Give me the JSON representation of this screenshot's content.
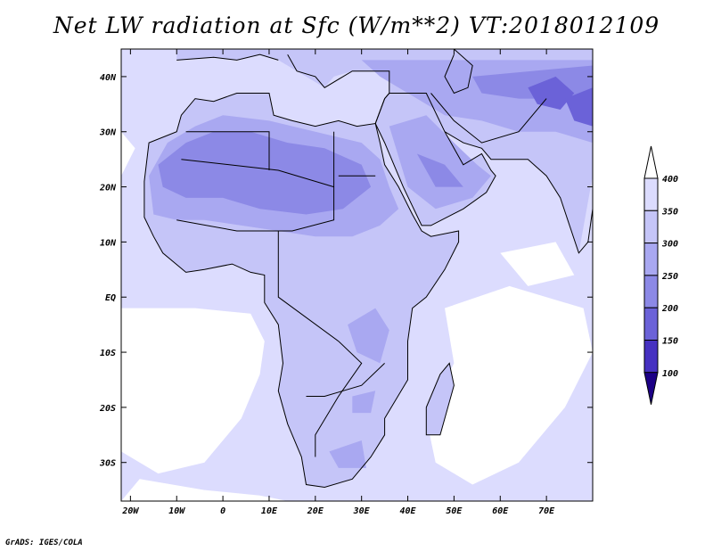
{
  "title": "Net LW radiation at Sfc (W/m**2) VT:2018012109",
  "credit": "GrADS: IGES/COLA",
  "map": {
    "lon_range": [
      -22,
      80
    ],
    "lat_range": [
      -37,
      45
    ],
    "lon_ticks": [
      {
        "value": -20,
        "label": "20W"
      },
      {
        "value": -10,
        "label": "10W"
      },
      {
        "value": 0,
        "label": "0"
      },
      {
        "value": 10,
        "label": "10E"
      },
      {
        "value": 20,
        "label": "20E"
      },
      {
        "value": 30,
        "label": "30E"
      },
      {
        "value": 40,
        "label": "40E"
      },
      {
        "value": 50,
        "label": "50E"
      },
      {
        "value": 60,
        "label": "60E"
      },
      {
        "value": 70,
        "label": "70E"
      }
    ],
    "lat_ticks": [
      {
        "value": 40,
        "label": "40N"
      },
      {
        "value": 30,
        "label": "30N"
      },
      {
        "value": 20,
        "label": "20N"
      },
      {
        "value": 10,
        "label": "10N"
      },
      {
        "value": 0,
        "label": "EQ"
      },
      {
        "value": -10,
        "label": "10S"
      },
      {
        "value": -20,
        "label": "20S"
      },
      {
        "value": -30,
        "label": "30S"
      }
    ]
  },
  "colorbar": {
    "levels": [
      "400",
      "350",
      "300",
      "250",
      "200",
      "150",
      "100"
    ],
    "colors": [
      "#ffffff",
      "#dcdcfe",
      "#c5c5f8",
      "#a9a8f1",
      "#8c89e6",
      "#6b62d8",
      "#4631c1",
      "#2a0d9e",
      "#1c0086"
    ]
  },
  "colors": {
    "ocean": "#dcdcfe",
    "ocean_clear": "#ffffff",
    "land_low": "#c5c5f8",
    "land_mid": "#a9a8f1",
    "land_high": "#8c89e6",
    "land_very_high": "#6b62d8",
    "coastline": "#000000"
  }
}
